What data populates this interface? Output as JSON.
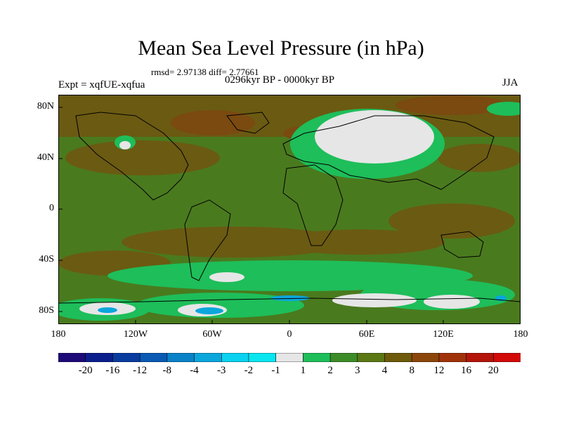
{
  "title": "Mean Sea Level Pressure (in hPa)",
  "stats": "rmsd= 2.97138 diff= 2.77661",
  "period": "0296kyr BP - 0000kyr BP",
  "experiment": "Expt = xqfUE-xqfua",
  "season": "JJA",
  "map": {
    "lat_ticks": [
      "80N",
      "40N",
      "0",
      "40S",
      "80S"
    ],
    "lon_ticks": [
      "180",
      "120W",
      "60W",
      "0",
      "60E",
      "120E",
      "180"
    ],
    "background_color": "#4a7a1e"
  },
  "colorbar": {
    "labels": [
      "-20",
      "-16",
      "-12",
      "-8",
      "-4",
      "-3",
      "-2",
      "-1",
      "1",
      "2",
      "3",
      "4",
      "8",
      "12",
      "16",
      "20"
    ],
    "colors": [
      "#1e0a78",
      "#0a1e8c",
      "#0a3ca0",
      "#0a5ab4",
      "#0a82c8",
      "#0aa6dc",
      "#0ad2f0",
      "#0ae6f0",
      "#e6e6e6",
      "#1ebe5a",
      "#3c8c28",
      "#5a7814",
      "#6e5a0a",
      "#8c460a",
      "#a0320a",
      "#b4140a",
      "#d20a0a"
    ]
  }
}
